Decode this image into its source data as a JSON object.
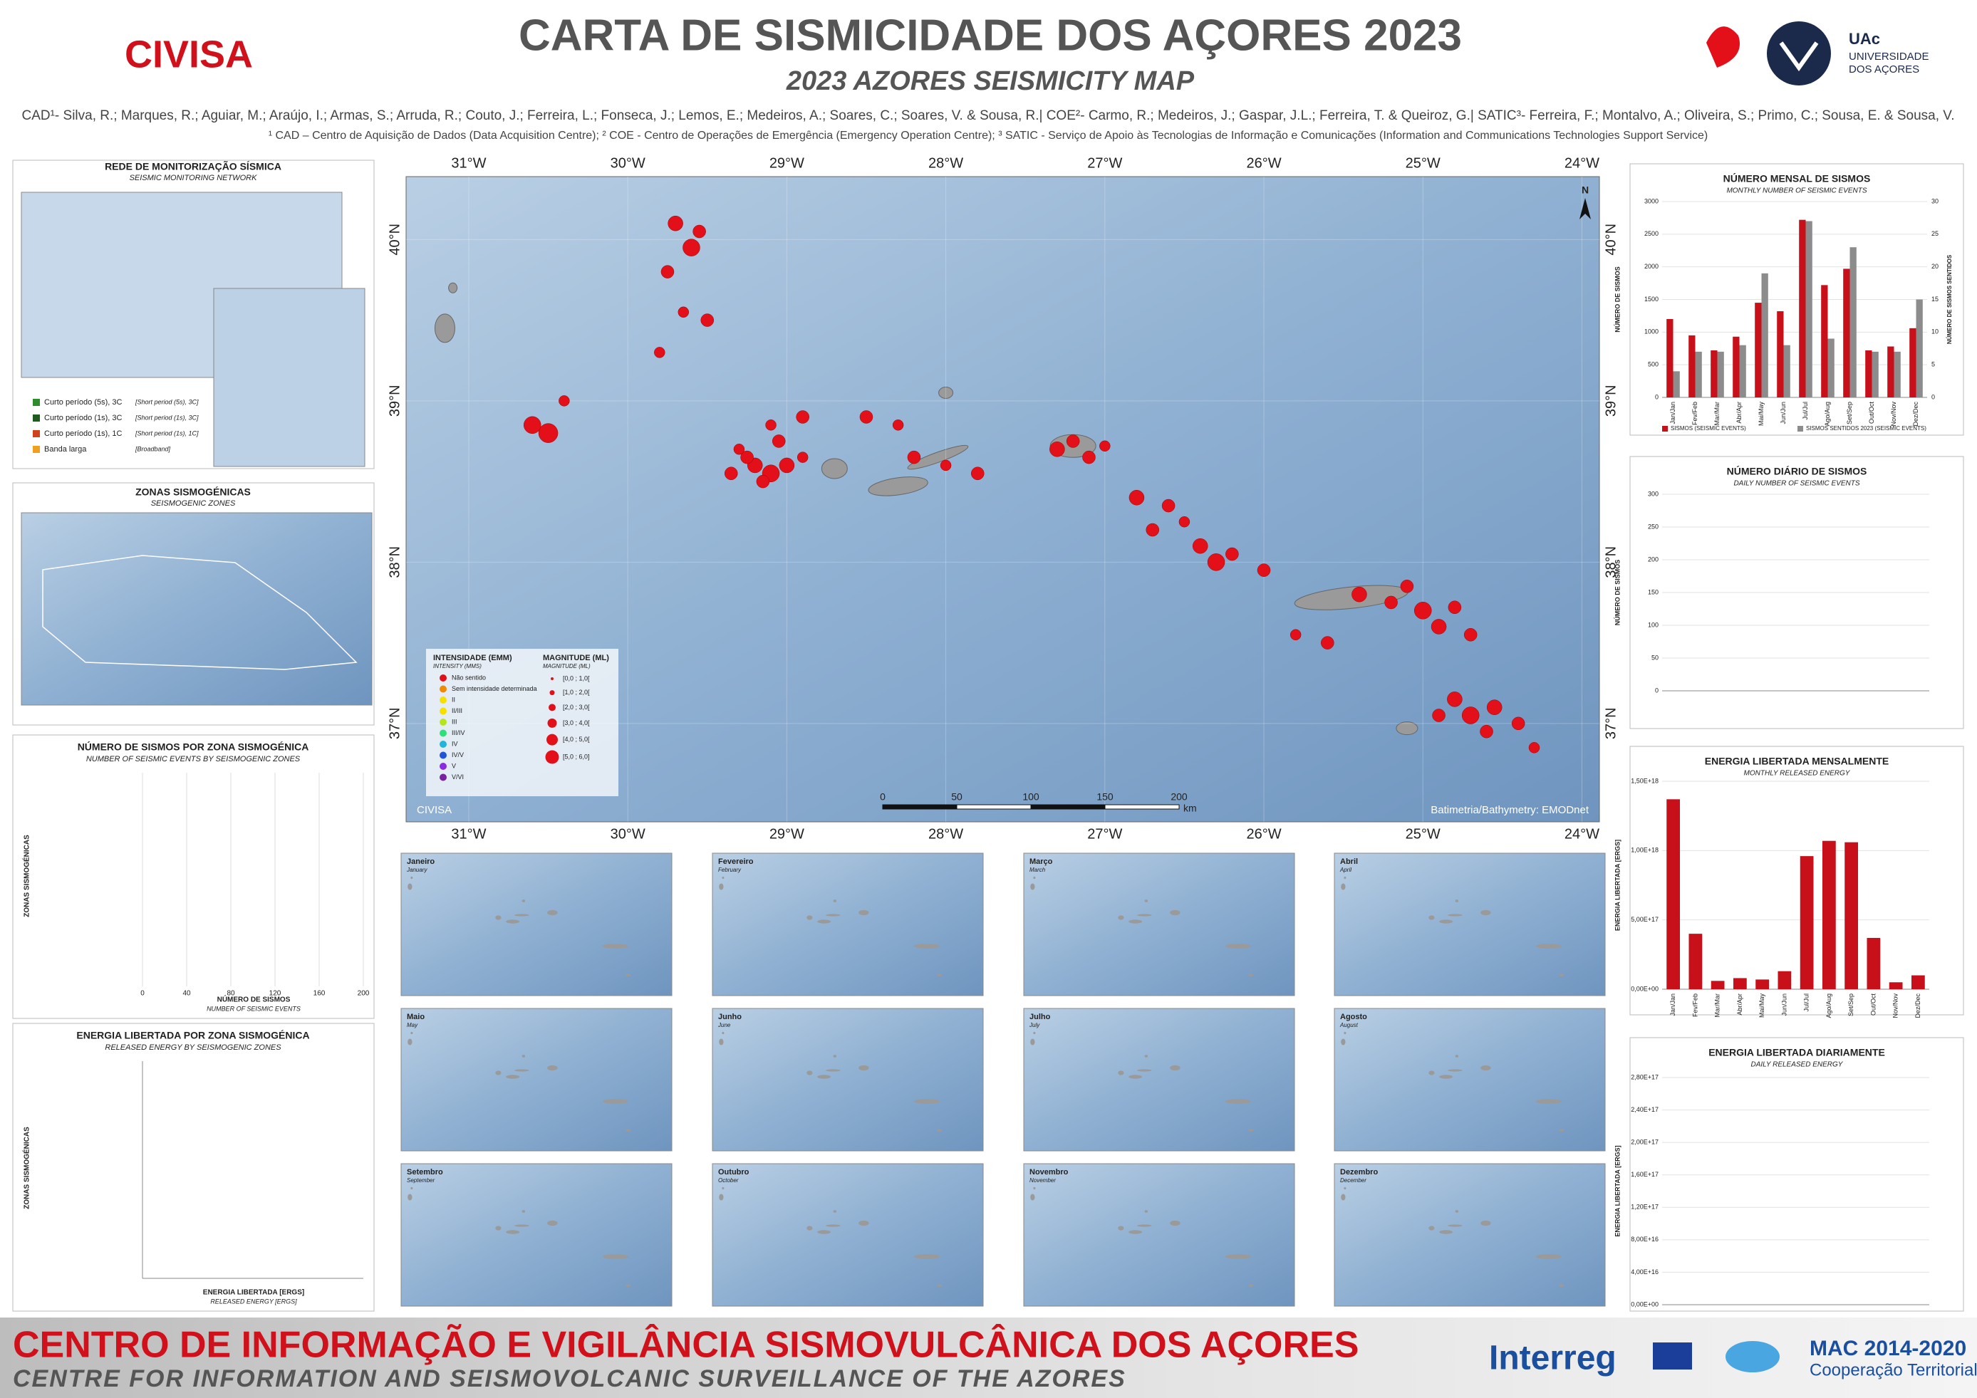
{
  "header": {
    "org": "CIVISA",
    "title": "CARTA DE SISMICIDADE DOS AÇORES 2023",
    "subtitle": "2023 AZORES SEISMICITY MAP",
    "authors": "CAD¹- Silva, R.; Marques, R.; Aguiar, M.; Araújo, I.; Armas, S.; Arruda, R.; Couto, J.; Ferreira, L.; Fonseca, J.; Lemos, E.; Medeiros, A.; Soares, C.; Soares, V. & Sousa, R.| COE²- Carmo, R.; Medeiros, J.; Gaspar, J.L.; Ferreira, T. & Queiroz, G.| SATIC³- Ferreira, F.; Montalvo, A.; Oliveira, S.; Primo, C.; Sousa, E. & Sousa, V.",
    "footnote": "¹ CAD – Centro de Aquisição de Dados (Data Acquisition Centre); ² COE - Centro de Operações de Emergência (Emergency Operation Centre); ³ SATIC - Serviço de Apoio às Tecnologias de Informação e Comunicações (Information and Communications Technologies Support Service)",
    "logo": [
      "UAc",
      "UNIVERSIDADE",
      "DOS AÇORES"
    ]
  },
  "network": {
    "title": "REDE DE MONITORIZAÇÃO SÍSMICA",
    "subtitle": "SEISMIC MONITORING NETWORK",
    "legend": [
      {
        "label": "Curto período (5s), 3C",
        "label_en": "[Short period (5s), 3C]",
        "color": "#2e8b2e"
      },
      {
        "label": "Curto período (1s), 3C",
        "label_en": "[Short period (1s), 3C]",
        "color": "#1f5a1f"
      },
      {
        "label": "Curto período (1s), 1C",
        "label_en": "[Short period (1s), 1C]",
        "color": "#d0421b"
      },
      {
        "label": "Banda larga",
        "label_en": "[Broadband]",
        "color": "#f0a020"
      }
    ]
  },
  "zones": {
    "title": "ZONAS SISMOGÉNICAS",
    "subtitle": "SEISMOGENIC ZONES"
  },
  "zone_counts": {
    "title": "NÚMERO DE SISMOS POR ZONA SISMOGÉNICA",
    "subtitle": "NUMBER OF SEISMIC EVENTS BY SEISMOGENIC ZONES",
    "ylabel": "ZONAS SISMOGÉNICAS",
    "xlabel": "NÚMERO DE SISMOS",
    "xlabel_en": "NUMBER OF SEISMIC EVENTS",
    "xlim": [
      0,
      200
    ],
    "xticks": [
      0,
      40,
      80,
      120,
      160,
      200
    ]
  },
  "zone_energy": {
    "title": "ENERGIA LIBERTADA POR ZONA SISMOGÉNICA",
    "subtitle": "RELEASED ENERGY BY SEISMOGENIC ZONES",
    "ylabel": "ZONAS SISMOGÉNICAS",
    "xlabel": "ENERGIA LIBERTADA [ERGS]",
    "xlabel_en": "RELEASED ENERGY [ERGS]"
  },
  "map": {
    "xlim": [
      -31.394,
      -23.89
    ],
    "ylim": [
      36.39,
      40.39
    ],
    "xticks": [
      {
        "value": -31,
        "label": "31°W"
      },
      {
        "value": -30,
        "label": "30°W"
      },
      {
        "value": -29,
        "label": "29°W"
      },
      {
        "value": -28,
        "label": "28°W"
      },
      {
        "value": -27,
        "label": "27°W"
      },
      {
        "value": -26,
        "label": "26°W"
      },
      {
        "value": -25,
        "label": "25°W"
      },
      {
        "value": -24,
        "label": "24°W"
      }
    ],
    "yticks": [
      {
        "value": 40,
        "label": "40°N"
      },
      {
        "value": 39,
        "label": "39°N"
      },
      {
        "value": 38,
        "label": "38°N"
      },
      {
        "value": 37,
        "label": "37°N"
      }
    ],
    "color": "#e3101a",
    "events": {
      "x": [
        -29.7,
        -29.6,
        -29.55,
        -29.75,
        -29.65,
        -29.8,
        -29.5,
        -30.5,
        -30.6,
        -30.4,
        -29.2,
        -29.1,
        -29.25,
        -29.0,
        -29.15,
        -29.3,
        -29.05,
        -28.9,
        -29.35,
        -29.1,
        -28.9,
        -28.5,
        -28.3,
        -28.2,
        -28.0,
        -27.8,
        -27.3,
        -27.2,
        -27.1,
        -27.0,
        -26.8,
        -26.6,
        -26.7,
        -26.4,
        -26.3,
        -26.2,
        -26.0,
        -26.5,
        -25.4,
        -25.2,
        -25.0,
        -24.8,
        -24.9,
        -25.1,
        -24.7,
        -24.8,
        -24.7,
        -24.55,
        -24.4,
        -24.6,
        -24.3,
        -24.9,
        -25.6,
        -25.8
      ],
      "y": [
        40.1,
        39.95,
        40.05,
        39.8,
        39.55,
        39.3,
        39.5,
        38.8,
        38.85,
        39.0,
        38.6,
        38.55,
        38.65,
        38.6,
        38.5,
        38.7,
        38.75,
        38.65,
        38.55,
        38.85,
        38.9,
        38.9,
        38.85,
        38.65,
        38.6,
        38.55,
        38.7,
        38.75,
        38.65,
        38.72,
        38.4,
        38.35,
        38.2,
        38.1,
        38.0,
        38.05,
        37.95,
        38.25,
        37.8,
        37.75,
        37.7,
        37.72,
        37.6,
        37.85,
        37.55,
        37.15,
        37.05,
        37.1,
        37.0,
        36.95,
        36.85,
        37.05,
        37.5,
        37.55
      ],
      "magnitude": [
        2.5,
        3,
        2,
        2,
        1.5,
        1.5,
        2,
        3.5,
        3,
        1.5,
        2.5,
        3,
        2,
        2.5,
        2,
        1.5,
        2,
        1.5,
        2,
        1.5,
        2,
        2,
        1.5,
        2,
        1.5,
        2,
        2.5,
        2,
        2,
        1.5,
        2.5,
        2,
        2,
        2.5,
        3,
        2,
        2,
        1.5,
        2.5,
        2,
        3,
        2,
        2.5,
        2,
        2,
        2.5,
        3,
        2.5,
        2,
        2,
        1.5,
        2,
        2,
        1.5
      ]
    },
    "legend": {
      "intensity_title": "INTENSIDADE (EMM)",
      "intensity_subtitle": "INTENSITY (MMS)",
      "intensity": [
        {
          "label": "Não sentido",
          "color": "#e3101a"
        },
        {
          "label": "Sem intensidade determinada",
          "color": "#f08a00"
        },
        {
          "label": "II",
          "color": "#f5e100"
        },
        {
          "label": "II/III",
          "color": "#f5e100"
        },
        {
          "label": "III",
          "color": "#b5e61d"
        },
        {
          "label": "III/IV",
          "color": "#2ee07a"
        },
        {
          "label": "IV",
          "color": "#21b5d8"
        },
        {
          "label": "IV/V",
          "color": "#2155d8"
        },
        {
          "label": "V",
          "color": "#8a2be2"
        },
        {
          "label": "V/VI",
          "color": "#7b1fa2"
        }
      ],
      "magnitude_title": "MAGNITUDE (ML)",
      "magnitude_subtitle": "MAGNITUDE (ML)",
      "magnitude": [
        "[0,0 ; 1,0[",
        "[1,0 ; 2,0[",
        "[2,0 ; 3,0[",
        "[3,0 ; 4,0[",
        "[4,0 ; 5,0[",
        "[5,0 ; 6,0]"
      ]
    },
    "scale": {
      "labels": [
        "0",
        "50",
        "100",
        "150",
        "200"
      ],
      "unit": "km"
    },
    "credit": "CIVISA",
    "source": "Batimetria/Bathymetry: EMODnet"
  },
  "months": [
    {
      "name": "Janeiro",
      "name_en": "January"
    },
    {
      "name": "Fevereiro",
      "name_en": "February"
    },
    {
      "name": "Março",
      "name_en": "March"
    },
    {
      "name": "Abril",
      "name_en": "April"
    },
    {
      "name": "Maio",
      "name_en": "May"
    },
    {
      "name": "Junho",
      "name_en": "June"
    },
    {
      "name": "Julho",
      "name_en": "July"
    },
    {
      "name": "Agosto",
      "name_en": "August"
    },
    {
      "name": "Setembro",
      "name_en": "September"
    },
    {
      "name": "Outubro",
      "name_en": "October"
    },
    {
      "name": "Novembro",
      "name_en": "November"
    },
    {
      "name": "Dezembro",
      "name_en": "December"
    }
  ],
  "chart_data": [
    {
      "type": "bar",
      "title": "NÚMERO MENSAL DE SISMOS",
      "subtitle": "MONTHLY NUMBER OF SEISMIC EVENTS",
      "ylabel": "NÚMERO DE SISMOS",
      "y2label": "NÚMERO DE SISMOS SENTIDOS",
      "categories": [
        "Jan/Jan",
        "Fev/Feb",
        "Mar/Mar",
        "Abr/Apr",
        "Mai/May",
        "Jun/Jun",
        "Jul/Jul",
        "Ago/Aug",
        "Set/Sep",
        "Out/Oct",
        "Nov/Nov",
        "Dez/Dec"
      ],
      "series": [
        {
          "name": "SISMOS (SEISMIC EVENTS)",
          "color": "#c8101a",
          "values": [
            1200,
            950,
            720,
            930,
            1450,
            1320,
            2720,
            1720,
            1970,
            720,
            780,
            1060
          ]
        },
        {
          "name": "SISMOS SENTIDOS 2023 (SEISMIC EVENTS)",
          "color": "#8c8c8c",
          "axis": "y2",
          "values": [
            4,
            7,
            7,
            8,
            19,
            8,
            27,
            9,
            23,
            7,
            7,
            15
          ]
        }
      ],
      "ylim": [
        0,
        3000
      ],
      "yticks": [
        0,
        500,
        1000,
        1500,
        2000,
        2500,
        3000
      ],
      "y2lim": [
        0,
        30
      ],
      "y2ticks": [
        0,
        5,
        10,
        15,
        20,
        25,
        30
      ]
    },
    {
      "type": "bar",
      "title": "ENERGIA LIBERTADA MENSALMENTE",
      "subtitle": "MONTHLY RELEASED ENERGY",
      "ylabel": "ENERGIA LIBERTADA [ERGS]",
      "categories": [
        "Jan/Jan",
        "Fev/Feb",
        "Mar/Mar",
        "Abr/Apr",
        "Mai/May",
        "Jun/Jun",
        "Jul/Jul",
        "Ago/Aug",
        "Set/Sep",
        "Out/Oct",
        "Nov/Nov",
        "Dez/Dec"
      ],
      "series": [
        {
          "name": "ENERGIA LIBERTADA [ERGS]",
          "color": "#c8101a",
          "values": [
            1370000000000000000,
            400000000000000000,
            60000000000000000,
            80000000000000000,
            70000000000000000,
            130000000000000000,
            960000000000000000,
            1070000000000000000,
            1060000000000000000,
            370000000000000000,
            50000000000000000,
            100000000000000000
          ]
        }
      ],
      "ylim": [
        0,
        1500000000000000000
      ],
      "yticks": [
        {
          "value": 0,
          "label": "0,00E+00"
        },
        {
          "value": 500000000000000000,
          "label": "5,00E+17"
        },
        {
          "value": 1000000000000000000,
          "label": "1,00E+18"
        },
        {
          "value": 1500000000000000000,
          "label": "1,50E+18"
        }
      ]
    }
  ],
  "daily_panels": [
    {
      "title": "NÚMERO DIÁRIO DE SISMOS",
      "subtitle": "DAILY NUMBER OF SEISMIC EVENTS",
      "ylabel": "NÚMERO DE SISMOS",
      "ylim": [
        0,
        300
      ],
      "yticks": [
        0,
        50,
        100,
        150,
        200,
        250,
        300
      ]
    },
    {
      "title": "ENERGIA LIBERTADA DIARIAMENTE",
      "subtitle": "DAILY RELEASED ENERGY",
      "ylabel": "ENERGIA LIBERTADA [ERGS]",
      "ylim": [
        0,
        280000000000000000
      ],
      "yticks": [
        {
          "value": 0,
          "label": "0,00E+00"
        },
        {
          "value": 40000000000000000,
          "label": "4,00E+16"
        },
        {
          "value": 80000000000000000,
          "label": "8,00E+16"
        },
        {
          "value": 120000000000000000,
          "label": "1,20E+17"
        },
        {
          "value": 160000000000000000,
          "label": "1,60E+17"
        },
        {
          "value": 200000000000000000,
          "label": "2,00E+17"
        },
        {
          "value": 240000000000000000,
          "label": "2,40E+17"
        },
        {
          "value": 280000000000000000,
          "label": "2,80E+17"
        }
      ]
    }
  ],
  "footer": {
    "title": "CENTRO DE INFORMAÇÃO E VIGILÂNCIA SISMOVULCÂNICA DOS AÇORES",
    "subtitle": "CENTRE FOR INFORMATION AND SEISMOVOLCANIC SURVEILLANCE OF THE AZORES",
    "interreg": "Interreg",
    "mac": "MAC 2014-2020",
    "mac_sub": "Cooperação Territorial"
  }
}
